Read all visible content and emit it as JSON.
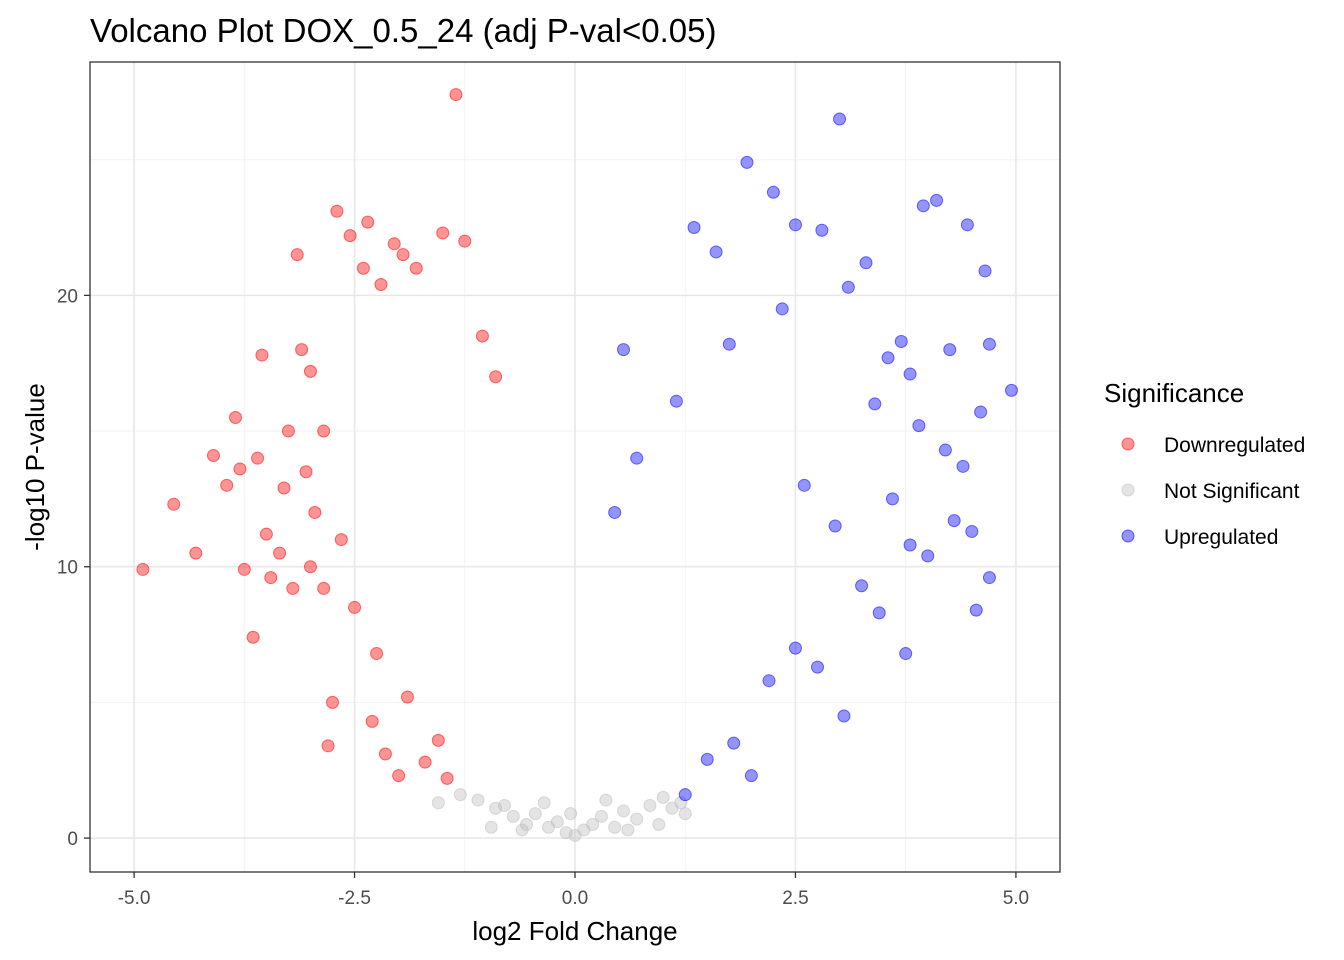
{
  "chart_data": {
    "type": "scatter",
    "title": "Volcano Plot DOX_0.5_24 (adj P-val<0.05)",
    "xlabel": "log2 Fold Change",
    "ylabel": "-log10 P-value",
    "xlim": [
      -5.5,
      5.5
    ],
    "ylim": [
      -1.25,
      28.6
    ],
    "x_ticks": [
      -5.0,
      -2.5,
      0.0,
      2.5,
      5.0
    ],
    "x_tick_labels": [
      "-5.0",
      "-2.5",
      "0.0",
      "2.5",
      "5.0"
    ],
    "y_ticks": [
      0,
      10,
      20
    ],
    "y_tick_labels": [
      "0",
      "10",
      "20"
    ],
    "grid": true,
    "legend": {
      "title": "Significance",
      "position": "right",
      "entries": [
        {
          "label": "Downregulated",
          "color": "#ff0000"
        },
        {
          "label": "Not Significant",
          "color": "#bebebe"
        },
        {
          "label": "Upregulated",
          "color": "#0000ff"
        }
      ]
    },
    "series": [
      {
        "name": "Downregulated",
        "color": "#ff0000",
        "points": [
          [
            -4.9,
            9.9
          ],
          [
            -4.55,
            12.3
          ],
          [
            -4.3,
            10.5
          ],
          [
            -4.1,
            14.1
          ],
          [
            -3.95,
            13.0
          ],
          [
            -3.85,
            15.5
          ],
          [
            -3.8,
            13.6
          ],
          [
            -3.75,
            9.9
          ],
          [
            -3.65,
            7.4
          ],
          [
            -3.6,
            14.0
          ],
          [
            -3.55,
            17.8
          ],
          [
            -3.5,
            11.2
          ],
          [
            -3.45,
            9.6
          ],
          [
            -3.35,
            10.5
          ],
          [
            -3.2,
            9.2
          ],
          [
            -3.15,
            21.5
          ],
          [
            -3.1,
            18.0
          ],
          [
            -3.0,
            17.2
          ],
          [
            -2.85,
            15.0
          ],
          [
            -2.8,
            3.4
          ],
          [
            -2.75,
            5.0
          ],
          [
            -2.7,
            23.1
          ],
          [
            -2.55,
            22.2
          ],
          [
            -2.4,
            21.0
          ],
          [
            -2.35,
            22.7
          ],
          [
            -2.2,
            20.4
          ],
          [
            -2.05,
            21.9
          ],
          [
            -1.95,
            21.5
          ],
          [
            -1.8,
            21.0
          ],
          [
            -1.5,
            22.3
          ],
          [
            -1.35,
            27.4
          ],
          [
            -1.25,
            22.0
          ],
          [
            -1.05,
            18.5
          ],
          [
            -0.9,
            17.0
          ],
          [
            -3.25,
            15.0
          ],
          [
            -3.05,
            13.5
          ],
          [
            -2.95,
            12.0
          ],
          [
            -2.65,
            11.0
          ],
          [
            -2.5,
            8.5
          ],
          [
            -2.3,
            4.3
          ],
          [
            -2.25,
            6.8
          ],
          [
            -2.15,
            3.1
          ],
          [
            -2.0,
            2.3
          ],
          [
            -1.9,
            5.2
          ],
          [
            -1.7,
            2.8
          ],
          [
            -1.55,
            3.6
          ],
          [
            -1.45,
            2.2
          ],
          [
            -2.85,
            9.2
          ],
          [
            -3.3,
            12.9
          ],
          [
            -3.0,
            10.0
          ]
        ]
      },
      {
        "name": "Not Significant",
        "color": "#bebebe",
        "points": [
          [
            -1.55,
            1.3
          ],
          [
            -1.3,
            1.6
          ],
          [
            -1.1,
            1.4
          ],
          [
            -0.9,
            1.1
          ],
          [
            -0.8,
            1.2
          ],
          [
            -0.7,
            0.8
          ],
          [
            -0.55,
            0.5
          ],
          [
            -0.45,
            0.9
          ],
          [
            -0.3,
            0.4
          ],
          [
            -0.2,
            0.6
          ],
          [
            -0.1,
            0.2
          ],
          [
            0.0,
            0.1
          ],
          [
            0.1,
            0.3
          ],
          [
            0.2,
            0.5
          ],
          [
            0.3,
            0.8
          ],
          [
            0.45,
            0.4
          ],
          [
            0.55,
            1.0
          ],
          [
            0.7,
            0.7
          ],
          [
            0.85,
            1.2
          ],
          [
            1.0,
            1.5
          ],
          [
            1.1,
            1.1
          ],
          [
            1.25,
            0.9
          ],
          [
            1.2,
            1.3
          ],
          [
            0.6,
            0.3
          ],
          [
            -0.6,
            0.3
          ],
          [
            -0.95,
            0.4
          ],
          [
            0.95,
            0.5
          ],
          [
            -0.35,
            1.3
          ],
          [
            0.35,
            1.4
          ],
          [
            -0.05,
            0.9
          ]
        ]
      },
      {
        "name": "Upregulated",
        "color": "#0000ff",
        "points": [
          [
            3.0,
            26.5
          ],
          [
            1.95,
            24.9
          ],
          [
            2.5,
            22.6
          ],
          [
            3.1,
            20.3
          ],
          [
            3.3,
            21.2
          ],
          [
            3.7,
            18.3
          ],
          [
            3.95,
            23.3
          ],
          [
            4.1,
            23.5
          ],
          [
            4.45,
            22.6
          ],
          [
            4.65,
            20.9
          ],
          [
            4.7,
            18.2
          ],
          [
            4.95,
            16.5
          ],
          [
            4.6,
            15.7
          ],
          [
            4.4,
            13.7
          ],
          [
            4.5,
            11.3
          ],
          [
            4.7,
            9.6
          ],
          [
            4.55,
            8.4
          ],
          [
            4.0,
            10.4
          ],
          [
            3.8,
            10.8
          ],
          [
            3.75,
            6.8
          ],
          [
            3.45,
            8.3
          ],
          [
            3.05,
            4.5
          ],
          [
            2.75,
            6.3
          ],
          [
            2.5,
            7.0
          ],
          [
            2.2,
            5.8
          ],
          [
            2.0,
            2.3
          ],
          [
            1.8,
            3.5
          ],
          [
            1.5,
            2.9
          ],
          [
            1.25,
            1.6
          ],
          [
            2.25,
            23.8
          ],
          [
            1.35,
            22.5
          ],
          [
            1.6,
            21.6
          ],
          [
            2.8,
            22.4
          ],
          [
            3.55,
            17.7
          ],
          [
            3.9,
            15.2
          ],
          [
            4.2,
            14.3
          ],
          [
            4.3,
            11.7
          ],
          [
            3.6,
            12.5
          ],
          [
            3.25,
            9.3
          ],
          [
            2.95,
            11.5
          ],
          [
            2.6,
            13.0
          ],
          [
            3.4,
            16.0
          ],
          [
            3.8,
            17.1
          ],
          [
            4.25,
            18.0
          ],
          [
            2.35,
            19.5
          ],
          [
            1.75,
            18.2
          ],
          [
            1.15,
            16.1
          ],
          [
            0.7,
            14.0
          ],
          [
            0.45,
            12.0
          ],
          [
            0.55,
            18.0
          ]
        ]
      }
    ]
  }
}
